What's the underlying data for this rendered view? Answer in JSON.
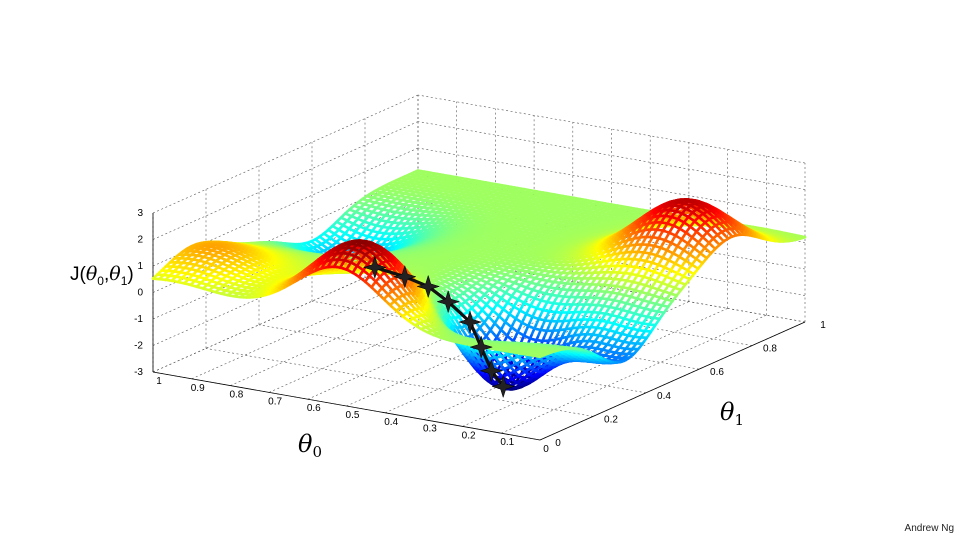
{
  "chart_data": {
    "type": "surface",
    "title": "",
    "xlabel": "θ0",
    "ylabel": "θ1",
    "zlabel": "J(θ0,θ1)",
    "xlim": [
      0,
      1
    ],
    "ylim": [
      0,
      1
    ],
    "zlim": [
      -3,
      3
    ],
    "x_ticks": [
      0,
      0.1,
      0.2,
      0.3,
      0.4,
      0.5,
      0.6,
      0.7,
      0.8,
      0.9,
      1
    ],
    "x_tick_labels": [
      "0",
      "0.1",
      "0.2",
      "0.3",
      "0.4",
      "0.5",
      "0.6",
      "0.7",
      "0.8",
      "0.9",
      "1"
    ],
    "y_ticks": [
      0,
      0.2,
      0.4,
      0.6,
      0.8,
      1
    ],
    "y_tick_labels": [
      "0",
      "0.2",
      "0.4",
      "0.6",
      "0.8",
      "1"
    ],
    "z_ticks": [
      -3,
      -2,
      -1,
      0,
      1,
      2,
      3
    ],
    "z_tick_labels": [
      "-3",
      "-2",
      "-1",
      "0",
      "1",
      "2",
      "3"
    ],
    "grid": true,
    "colormap": "jet",
    "surface_features": [
      {
        "kind": "peak",
        "x": 0.52,
        "y": 0.08,
        "z": 2.8
      },
      {
        "kind": "peak",
        "x": 0.12,
        "y": 0.72,
        "z": 2.5
      },
      {
        "kind": "peak",
        "x": 0.95,
        "y": 0.15,
        "z": 1.2
      },
      {
        "kind": "valley",
        "x": 0.28,
        "y": 0.28,
        "z": -3.0
      },
      {
        "kind": "valley",
        "x": 0.02,
        "y": 0.32,
        "z": -1.4
      },
      {
        "kind": "valley",
        "x": 0.9,
        "y": 0.6,
        "z": -1.3
      }
    ],
    "descent_path": [
      {
        "x": 0.55,
        "y": 0.18,
        "z": 1.3
      },
      {
        "x": 0.5,
        "y": 0.22,
        "z": 0.9
      },
      {
        "x": 0.46,
        "y": 0.25,
        "z": 0.5
      },
      {
        "x": 0.47,
        "y": 0.34,
        "z": -0.5
      },
      {
        "x": 0.4,
        "y": 0.32,
        "z": -1.0
      },
      {
        "x": 0.33,
        "y": 0.26,
        "z": -1.5
      },
      {
        "x": 0.29,
        "y": 0.24,
        "z": -2.2
      },
      {
        "x": 0.28,
        "y": 0.27,
        "z": -2.9
      }
    ]
  },
  "footer": {
    "credit": "Andrew Ng"
  },
  "labels": {
    "x_symbol": "θ",
    "x_sub": "0",
    "y_symbol": "θ",
    "y_sub": "1",
    "z_prefix": "J(",
    "z_theta0": "θ",
    "z_sub0": "0",
    "z_comma": ",",
    "z_theta1": "θ",
    "z_sub1": "1",
    "z_suffix": ")"
  }
}
